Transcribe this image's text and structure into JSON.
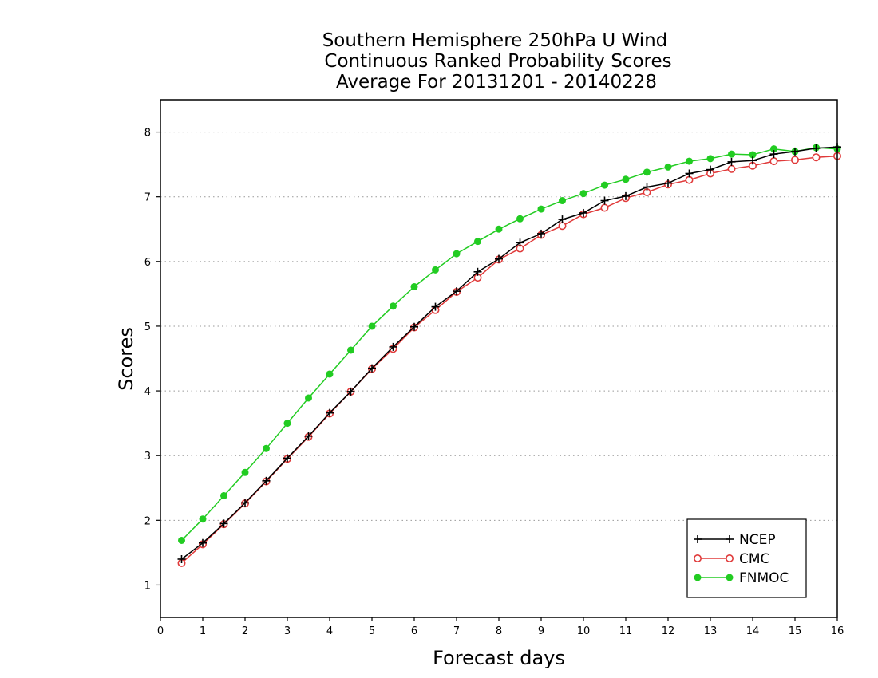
{
  "chart_data": {
    "type": "line",
    "title_lines": [
      "Southern Hemisphere 250hPa U Wind",
      "Continuous Ranked Probability Scores",
      "Average For 20131201 - 20140228"
    ],
    "xlabel": "Forecast days",
    "ylabel": "Scores",
    "xlim": [
      0,
      16
    ],
    "ylim": [
      0.5,
      8.5
    ],
    "xticks": [
      0,
      1,
      2,
      3,
      4,
      5,
      6,
      7,
      8,
      9,
      10,
      11,
      12,
      13,
      14,
      15,
      16
    ],
    "yticks": [
      1,
      2,
      3,
      4,
      5,
      6,
      7,
      8
    ],
    "grid": "horizontal dotted",
    "legend_position": "bottom-right",
    "x": [
      0.5,
      1,
      1.5,
      2,
      2.5,
      3,
      3.5,
      4,
      4.5,
      5,
      5.5,
      6,
      6.5,
      7,
      7.5,
      8,
      8.5,
      9,
      9.5,
      10,
      10.5,
      11,
      11.5,
      12,
      12.5,
      13,
      13.5,
      14,
      14.5,
      15,
      15.5,
      16
    ],
    "series": [
      {
        "name": "NCEP",
        "color": "#000000",
        "marker": "plus",
        "values": [
          1.4,
          1.65,
          1.95,
          2.27,
          2.61,
          2.96,
          3.3,
          3.66,
          3.99,
          4.35,
          4.68,
          4.99,
          5.3,
          5.54,
          5.84,
          6.04,
          6.29,
          6.43,
          6.65,
          6.75,
          6.94,
          7.01,
          7.15,
          7.21,
          7.36,
          7.42,
          7.54,
          7.56,
          7.66,
          7.7,
          7.75,
          7.77
        ]
      },
      {
        "name": "CMC",
        "color": "#e03a3a",
        "marker": "open-circle",
        "values": [
          1.34,
          1.63,
          1.94,
          2.26,
          2.6,
          2.95,
          3.29,
          3.65,
          3.99,
          4.34,
          4.65,
          4.98,
          5.25,
          5.53,
          5.75,
          6.03,
          6.2,
          6.41,
          6.55,
          6.73,
          6.83,
          6.98,
          7.07,
          7.19,
          7.26,
          7.36,
          7.43,
          7.48,
          7.55,
          7.57,
          7.61,
          7.63
        ]
      },
      {
        "name": "FNMOC",
        "color": "#22cc22",
        "marker": "filled-circle",
        "values": [
          1.69,
          2.02,
          2.38,
          2.74,
          3.11,
          3.5,
          3.89,
          4.26,
          4.63,
          5.0,
          5.31,
          5.61,
          5.87,
          6.12,
          6.31,
          6.5,
          6.66,
          6.81,
          6.94,
          7.05,
          7.18,
          7.27,
          7.38,
          7.46,
          7.55,
          7.59,
          7.66,
          7.65,
          7.74,
          7.7,
          7.76,
          7.74
        ]
      }
    ]
  }
}
